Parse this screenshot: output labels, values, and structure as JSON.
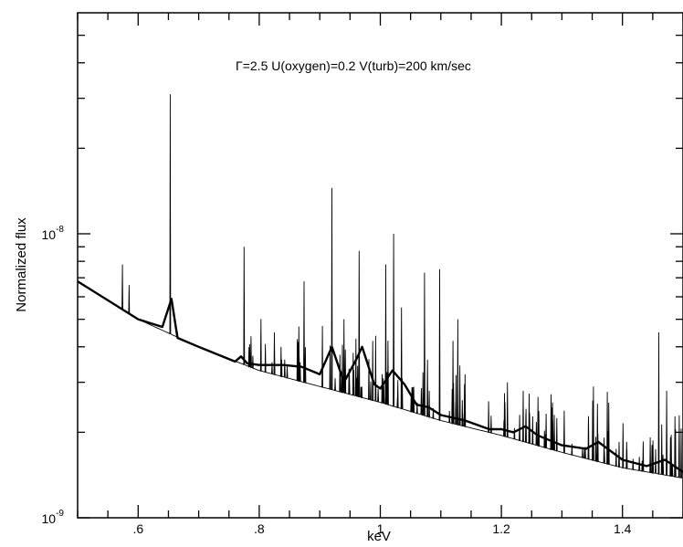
{
  "chart_data": {
    "type": "line",
    "title": "",
    "annotation": "Γ=2.5 U(oxygen)=0.2 V(turb)=200 km/sec",
    "xlabel": "keV",
    "ylabel": "Normalized flux",
    "xlim": [
      0.5,
      1.5
    ],
    "ylim": [
      1e-09,
      6e-08
    ],
    "yscale": "log",
    "grid": false,
    "x_tick_labels": [
      ".6",
      ".8",
      "1",
      "1.2",
      "1.4"
    ],
    "x_tick_values": [
      0.6,
      0.8,
      1.0,
      1.2,
      1.4
    ],
    "y_tick_labels": [
      {
        "base": "10",
        "exp": "-9",
        "value": 1e-09
      },
      {
        "base": "10",
        "exp": "-8",
        "value": 1e-08
      }
    ],
    "series": [
      {
        "style": "thin",
        "continuum_x": [
          0.5,
          0.6,
          0.7,
          0.8,
          0.9,
          1.0,
          1.1,
          1.2,
          1.3,
          1.4,
          1.5
        ],
        "continuum_y": [
          6.8e-09,
          5e-09,
          4e-09,
          3.3e-09,
          2.9e-09,
          2.55e-09,
          2.2e-09,
          1.95e-09,
          1.7e-09,
          1.5e-09,
          1.38e-09
        ],
        "lines_x": [
          0.574,
          0.585,
          0.653,
          0.665,
          0.775,
          0.825,
          0.836,
          0.874,
          0.92,
          0.94,
          0.965,
          1.009,
          1.022,
          1.035,
          1.073,
          1.098,
          1.12,
          1.128,
          1.14,
          1.21,
          1.236,
          1.352,
          1.46,
          1.473
        ],
        "lines_y": [
          7.8e-09,
          6.6e-09,
          3.1e-08,
          4.5e-09,
          9e-09,
          4.5e-09,
          4e-09,
          6.8e-09,
          1.45e-08,
          5e-09,
          8.7e-09,
          7.8e-09,
          1e-08,
          5.5e-09,
          7.3e-09,
          7.5e-09,
          4.2e-09,
          5e-09,
          3.2e-09,
          3e-09,
          2.8e-09,
          2.9e-09,
          4.5e-09,
          2.8e-09
        ]
      },
      {
        "style": "thick",
        "x": [
          0.5,
          0.6,
          0.64,
          0.655,
          0.665,
          0.7,
          0.76,
          0.77,
          0.78,
          0.8,
          0.84,
          0.87,
          0.9,
          0.92,
          0.94,
          0.96,
          0.97,
          0.99,
          1.0,
          1.02,
          1.04,
          1.06,
          1.08,
          1.1,
          1.14,
          1.18,
          1.2,
          1.22,
          1.24,
          1.26,
          1.3,
          1.34,
          1.36,
          1.4,
          1.44,
          1.47,
          1.5
        ],
        "y": [
          6.8e-09,
          5e-09,
          4.7e-09,
          5.9e-09,
          4.3e-09,
          4e-09,
          3.55e-09,
          3.7e-09,
          3.5e-09,
          3.45e-09,
          3.45e-09,
          3.4e-09,
          3.2e-09,
          4e-09,
          3e-09,
          3.6e-09,
          4e-09,
          2.95e-09,
          2.85e-09,
          3.3e-09,
          2.95e-09,
          2.5e-09,
          2.45e-09,
          2.3e-09,
          2.2e-09,
          2.05e-09,
          2.05e-09,
          2e-09,
          2.1e-09,
          1.95e-09,
          1.8e-09,
          1.75e-09,
          1.85e-09,
          1.6e-09,
          1.52e-09,
          1.6e-09,
          1.45e-09
        ]
      }
    ]
  }
}
